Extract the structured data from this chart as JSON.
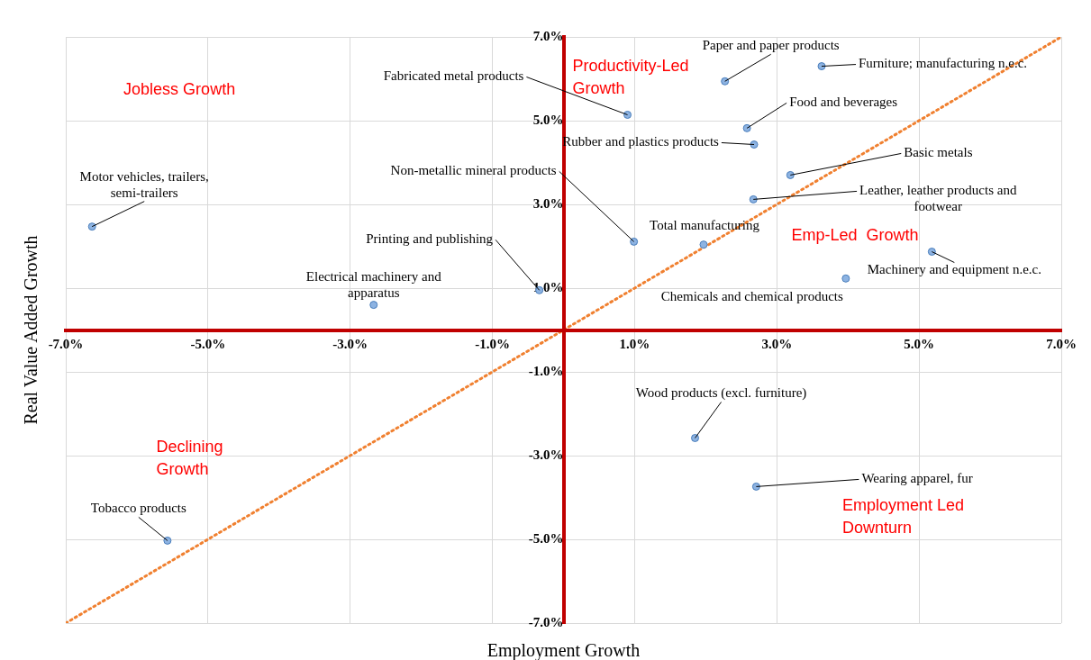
{
  "chart_data": {
    "type": "scatter",
    "xlabel": "Employment Growth",
    "ylabel": "Real Value Added Growth",
    "xlim": [
      -7,
      7
    ],
    "ylim": [
      -7,
      7
    ],
    "xticks": [
      {
        "value": -7,
        "label": "-7.0%"
      },
      {
        "value": -5,
        "label": "-5.0%"
      },
      {
        "value": -3,
        "label": "-3.0%"
      },
      {
        "value": -1,
        "label": "-1.0%"
      },
      {
        "value": 1,
        "label": "1.0%"
      },
      {
        "value": 3,
        "label": "3.0%"
      },
      {
        "value": 5,
        "label": "5.0%"
      },
      {
        "value": 7,
        "label": "7.0%"
      }
    ],
    "yticks": [
      {
        "value": -7,
        "label": "-7.0%"
      },
      {
        "value": -5,
        "label": "-5.0%"
      },
      {
        "value": -3,
        "label": "-3.0%"
      },
      {
        "value": -1,
        "label": "-1.0%"
      },
      {
        "value": 1,
        "label": "1.0%"
      },
      {
        "value": 3,
        "label": "3.0%"
      },
      {
        "value": 5,
        "label": "5.0%"
      },
      {
        "value": 7,
        "label": "7.0%"
      }
    ],
    "grid": true,
    "legend": false,
    "marker": "circle",
    "series": [
      {
        "type": "scatter",
        "color": "#8db3e2",
        "x": [
          0.9,
          2.27,
          3.63,
          2.58,
          2.68,
          3.19,
          2.67,
          0.99,
          1.97,
          5.18,
          3.97,
          -0.34,
          -2.67,
          -6.63,
          -5.57,
          1.85,
          2.71
        ],
        "values": [
          5.14,
          5.94,
          6.3,
          4.82,
          4.43,
          3.7,
          3.12,
          2.11,
          2.04,
          1.87,
          1.23,
          0.95,
          0.6,
          2.47,
          -5.03,
          -2.58,
          -3.74
        ]
      },
      {
        "type": "line",
        "color": "#f08030",
        "line_style": "dotted",
        "marker": "none",
        "x": [
          -7,
          7
        ],
        "values": [
          -7,
          7
        ]
      }
    ],
    "annotations": [
      {
        "text": "Fabricated metal products",
        "x": 0.9,
        "y": 5.14
      },
      {
        "text": "Paper and paper products",
        "x": 2.27,
        "y": 5.94
      },
      {
        "text": "Furniture; manufacturing n.e.c.",
        "x": 3.63,
        "y": 6.3
      },
      {
        "text": "Food and beverages",
        "x": 2.58,
        "y": 4.82
      },
      {
        "text": "Rubber and plastics products",
        "x": 2.68,
        "y": 4.43
      },
      {
        "text": "Basic metals",
        "x": 3.19,
        "y": 3.7
      },
      {
        "text": "Leather, leather products and footwear",
        "x": 2.67,
        "y": 3.12
      },
      {
        "text": "Non-metallic mineral products",
        "x": 0.99,
        "y": 2.11
      },
      {
        "text": "Total manufacturing",
        "x": 1.97,
        "y": 2.04
      },
      {
        "text": "Machinery and equipment n.e.c.",
        "x": 5.18,
        "y": 1.87
      },
      {
        "text": "Chemicals and chemical products",
        "x": 3.97,
        "y": 1.23
      },
      {
        "text": "Printing and publishing",
        "x": -0.34,
        "y": 0.95
      },
      {
        "text": "Electrical machinery and apparatus",
        "x": -2.67,
        "y": 0.6
      },
      {
        "text": "Motor vehicles, trailers, semi-trailers",
        "x": -6.63,
        "y": 2.47
      },
      {
        "text": "Tobacco products",
        "x": -5.57,
        "y": -5.03
      },
      {
        "text": "Wood products (excl. furniture)",
        "x": 1.85,
        "y": -2.58
      },
      {
        "text": "Wearing apparel, fur",
        "x": 2.71,
        "y": -3.74
      },
      "Jobless Growth",
      "Productivity-Led Growth",
      "Emp-Led  Growth",
      "Declining Growth",
      "Employment Led Downturn"
    ]
  }
}
